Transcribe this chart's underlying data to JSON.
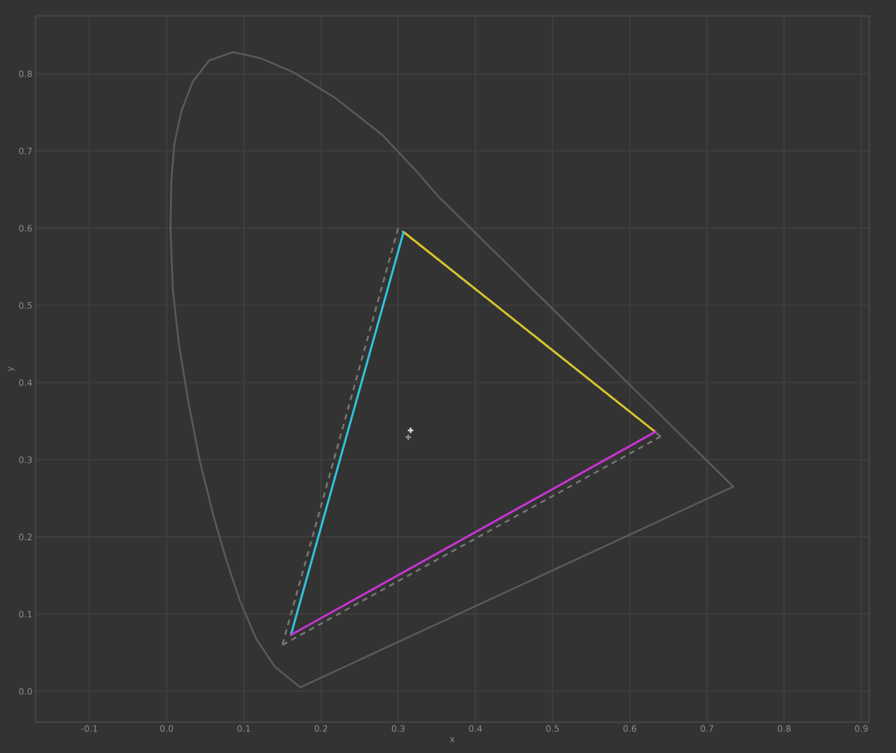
{
  "chart_data": {
    "type": "line",
    "xlabel": "x",
    "ylabel": "y",
    "xlim": [
      -0.17,
      0.91
    ],
    "ylim": [
      -0.04,
      0.875
    ],
    "xticks": [
      {
        "value": -0.1,
        "label": "-0.1"
      },
      {
        "value": 0,
        "label": "0.0"
      },
      {
        "value": 0.1,
        "label": "0.1"
      },
      {
        "value": 0.2,
        "label": "0.2"
      },
      {
        "value": 0.3,
        "label": "0.3"
      },
      {
        "value": 0.4,
        "label": "0.4"
      },
      {
        "value": 0.5,
        "label": "0.5"
      },
      {
        "value": 0.6,
        "label": "0.6"
      },
      {
        "value": 0.7,
        "label": "0.7"
      },
      {
        "value": 0.8,
        "label": "0.8"
      },
      {
        "value": 0.9,
        "label": "0.9"
      }
    ],
    "yticks": [
      {
        "value": 0,
        "label": "0.0"
      },
      {
        "value": 0.1,
        "label": "0.1"
      },
      {
        "value": 0.2,
        "label": "0.2"
      },
      {
        "value": 0.3,
        "label": "0.3"
      },
      {
        "value": 0.4,
        "label": "0.4"
      },
      {
        "value": 0.5,
        "label": "0.5"
      },
      {
        "value": 0.6,
        "label": "0.6"
      },
      {
        "value": 0.7,
        "label": "0.7"
      },
      {
        "value": 0.8,
        "label": "0.8"
      }
    ],
    "grid": true,
    "series": [
      {
        "color": "#5a5a5a",
        "line_style": "solid",
        "x": [
          0.173,
          0.14,
          0.116,
          0.095,
          0.077,
          0.061,
          0.043,
          0.028,
          0.016,
          0.008,
          0.005
        ],
        "values": [
          0.005,
          0.032,
          0.068,
          0.117,
          0.171,
          0.226,
          0.298,
          0.376,
          0.449,
          0.521,
          0.6
        ]
      },
      {
        "color": "#5a5a5a",
        "line_style": "solid",
        "x": [
          0.005,
          0.006,
          0.01,
          0.019,
          0.034,
          0.055,
          0.086,
          0.122,
          0.164,
          0.218,
          0.279,
          0.327,
          0.351,
          0.608,
          0.734
        ],
        "values": [
          0.6,
          0.66,
          0.709,
          0.751,
          0.79,
          0.817,
          0.828,
          0.82,
          0.802,
          0.769,
          0.721,
          0.67,
          0.642,
          0.389,
          0.265
        ]
      },
      {
        "color": "#5a5a5a",
        "line_style": "solid",
        "x": [
          0.734,
          0.173
        ],
        "values": [
          0.265,
          0.005
        ]
      },
      {
        "color": "#767676",
        "line_style": "dashed",
        "x": [
          0.64,
          0.3,
          0.15
        ],
        "values": [
          0.33,
          0.6,
          0.06
        ]
      },
      {
        "color": "#767676",
        "line_style": "dashed",
        "x": [
          0.15,
          0.64
        ],
        "values": [
          0.06,
          0.33
        ]
      },
      {
        "color": "#d8c428",
        "line_style": "solid",
        "x": [
          0.633,
          0.307
        ],
        "values": [
          0.336,
          0.595
        ]
      },
      {
        "color": "#30c4dc",
        "line_style": "solid",
        "x": [
          0.307,
          0.161
        ],
        "values": [
          0.595,
          0.073
        ]
      },
      {
        "color": "#c834d4",
        "line_style": "solid",
        "x": [
          0.161,
          0.633
        ],
        "values": [
          0.073,
          0.336
        ]
      },
      {
        "type": "scatter",
        "marker": "cross",
        "color": "#8a8a8a",
        "x": [
          0.313
        ],
        "values": [
          0.329
        ]
      },
      {
        "type": "scatter",
        "marker": "cross",
        "color": "#d8d8d8",
        "x": [
          0.316
        ],
        "values": [
          0.338
        ]
      }
    ]
  }
}
